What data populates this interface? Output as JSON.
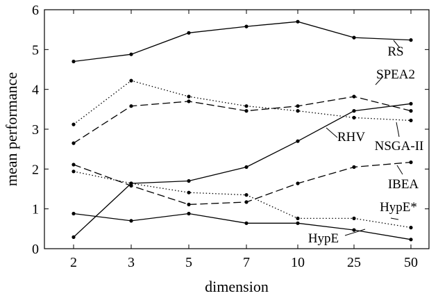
{
  "chart_data": {
    "type": "line",
    "xlabel": "dimension",
    "ylabel": "mean performance",
    "categories": [
      "2",
      "3",
      "5",
      "7",
      "10",
      "25",
      "50"
    ],
    "ylim": [
      0,
      6
    ],
    "yticks": [
      "0",
      "1",
      "2",
      "3",
      "4",
      "5",
      "6"
    ],
    "grid": false,
    "legend": "inline labels",
    "series": [
      {
        "name": "RS",
        "style": "solid",
        "values": [
          4.7,
          4.88,
          5.42,
          5.58,
          5.7,
          5.3,
          5.24
        ]
      },
      {
        "name": "SPEA2",
        "style": "dashed",
        "values": [
          2.65,
          3.58,
          3.7,
          3.46,
          3.58,
          3.82,
          3.46
        ]
      },
      {
        "name": "NSGA-II",
        "style": "dotted",
        "values": [
          3.12,
          4.22,
          3.82,
          3.58,
          3.46,
          3.29,
          3.22
        ]
      },
      {
        "name": "RHV",
        "style": "solid",
        "values": [
          0.29,
          1.64,
          1.7,
          2.05,
          2.7,
          3.46,
          3.64
        ]
      },
      {
        "name": "IBEA",
        "style": "dashed",
        "values": [
          2.11,
          1.58,
          1.11,
          1.17,
          1.64,
          2.05,
          2.17
        ]
      },
      {
        "name": "HypE*",
        "style": "dotted",
        "values": [
          1.94,
          1.64,
          1.41,
          1.35,
          0.76,
          0.76,
          0.53
        ]
      },
      {
        "name": "HypE",
        "style": "solid",
        "values": [
          0.88,
          0.7,
          0.88,
          0.64,
          0.64,
          0.47,
          0.23
        ]
      }
    ]
  }
}
